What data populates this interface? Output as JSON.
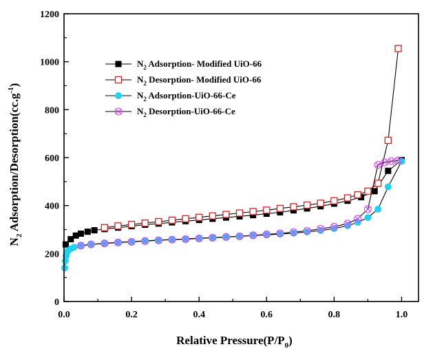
{
  "chart_data": {
    "type": "scatter",
    "title": "",
    "xlabel": {
      "pre": "Relative Pressure(P/P",
      "sub": "0",
      "post": ")"
    },
    "ylabel": {
      "pre": "N",
      "sub": "2",
      "main": " Adsorption/Desorption(cc.g",
      "sup": "-1",
      "post": ")"
    },
    "xlim": [
      0,
      1.05
    ],
    "ylim": [
      0,
      1200
    ],
    "xticks": [
      {
        "value": 0.0,
        "label": "0.0"
      },
      {
        "value": 0.2,
        "label": "0.2"
      },
      {
        "value": 0.4,
        "label": "0.4"
      },
      {
        "value": 0.6,
        "label": "0.6"
      },
      {
        "value": 0.8,
        "label": "0.8"
      },
      {
        "value": 1.0,
        "label": "1.0"
      }
    ],
    "yticks": [
      {
        "value": 0,
        "label": "0"
      },
      {
        "value": 200,
        "label": "200"
      },
      {
        "value": 400,
        "label": "400"
      },
      {
        "value": 600,
        "label": "600"
      },
      {
        "value": 800,
        "label": "800"
      },
      {
        "value": 1000,
        "label": "1000"
      },
      {
        "value": 1200,
        "label": "1200"
      }
    ],
    "grid": false,
    "legend_position": "top-left",
    "series": [
      {
        "name_pre": "N",
        "name_sub": "2",
        "name_post": " Adsorption- Modified UiO-66",
        "marker": "square-filled",
        "color": "#000000",
        "x": [
          0.005,
          0.02,
          0.035,
          0.05,
          0.07,
          0.09,
          0.12,
          0.16,
          0.2,
          0.24,
          0.28,
          0.32,
          0.36,
          0.4,
          0.44,
          0.48,
          0.52,
          0.56,
          0.6,
          0.64,
          0.68,
          0.72,
          0.76,
          0.8,
          0.84,
          0.88,
          0.92,
          0.96,
          1.0
        ],
        "y": [
          238,
          260,
          275,
          283,
          291,
          297,
          302,
          308,
          314,
          320,
          325,
          330,
          335,
          340,
          345,
          350,
          355,
          360,
          366,
          372,
          380,
          388,
          397,
          408,
          420,
          435,
          460,
          545,
          590
        ]
      },
      {
        "name_pre": "N",
        "name_sub": "2",
        "name_post": " Desorption- Modified UiO-66",
        "marker": "square-open",
        "color": "#e31a1c",
        "x": [
          0.99,
          0.96,
          0.93,
          0.9,
          0.87,
          0.84,
          0.8,
          0.76,
          0.72,
          0.68,
          0.64,
          0.6,
          0.56,
          0.52,
          0.48,
          0.44,
          0.4,
          0.36,
          0.32,
          0.28,
          0.24,
          0.2,
          0.16,
          0.12
        ],
        "y": [
          1055,
          672,
          493,
          460,
          445,
          432,
          420,
          410,
          402,
          395,
          388,
          381,
          375,
          369,
          363,
          357,
          351,
          345,
          339,
          333,
          327,
          321,
          315,
          308
        ]
      },
      {
        "name_pre": "N",
        "name_sub": "2",
        "name_post": " Adsorption-UiO-66-Ce",
        "marker": "circle-filled",
        "color": "#1fd3f0",
        "x": [
          0.002,
          0.004,
          0.006,
          0.008,
          0.012,
          0.02,
          0.03,
          0.05,
          0.08,
          0.12,
          0.16,
          0.2,
          0.24,
          0.28,
          0.32,
          0.36,
          0.4,
          0.44,
          0.48,
          0.52,
          0.56,
          0.6,
          0.64,
          0.68,
          0.72,
          0.76,
          0.8,
          0.84,
          0.87,
          0.9,
          0.93,
          0.96,
          1.0
        ],
        "y": [
          140,
          170,
          190,
          202,
          212,
          220,
          226,
          232,
          238,
          243,
          247,
          250,
          253,
          256,
          258,
          261,
          264,
          266,
          269,
          272,
          275,
          278,
          281,
          285,
          290,
          296,
          304,
          316,
          330,
          350,
          385,
          478,
          585
        ]
      },
      {
        "name_pre": "N",
        "name_sub": "2",
        "name_post": " Desorption-UiO-66-Ce",
        "marker": "circle-x-open",
        "color": "#e040fb",
        "x": [
          0.99,
          0.97,
          0.95,
          0.93,
          0.9,
          0.87,
          0.84,
          0.8,
          0.76,
          0.72,
          0.68,
          0.64,
          0.6,
          0.56,
          0.52,
          0.48,
          0.44,
          0.4,
          0.36,
          0.32,
          0.28,
          0.24,
          0.2,
          0.16,
          0.12,
          0.08,
          0.05
        ],
        "y": [
          588,
          585,
          580,
          570,
          385,
          345,
          325,
          312,
          303,
          295,
          289,
          284,
          280,
          276,
          272,
          269,
          266,
          263,
          260,
          258,
          255,
          252,
          249,
          246,
          242,
          238,
          233
        ]
      }
    ]
  }
}
